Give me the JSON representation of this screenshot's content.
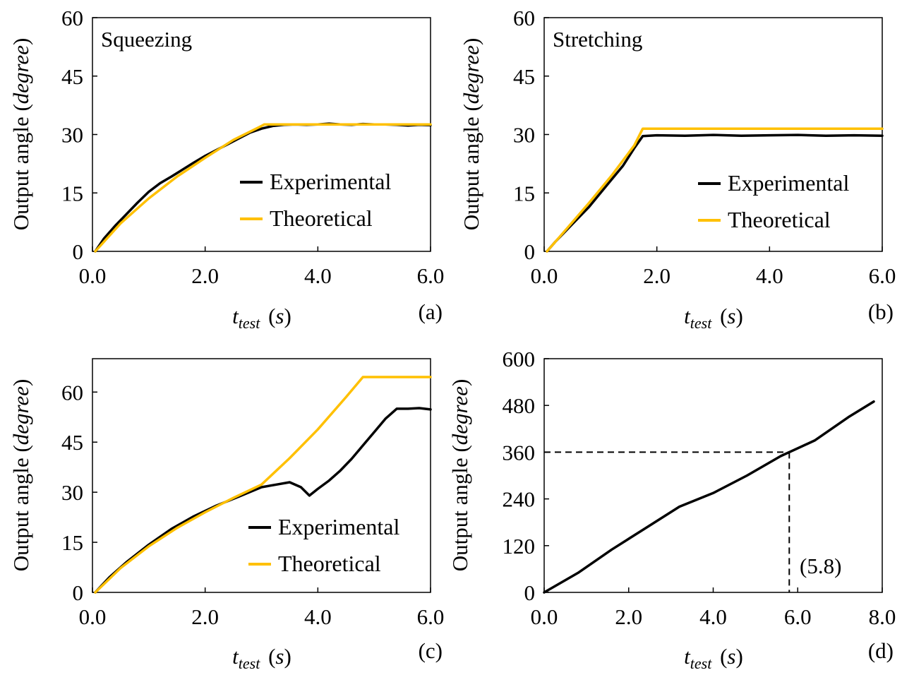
{
  "colors": {
    "experimental": "#000000",
    "theoretical": "#FFC000",
    "frame": "#000000"
  },
  "chart_data": [
    {
      "id": "a",
      "type": "line",
      "panel_label": "(a)",
      "annotation": "Squeezing",
      "xlabel_main": "t",
      "xlabel_sub": "test",
      "xlabel_unit": "(s)",
      "ylabel_main": "Output angle (",
      "ylabel_italic": "degree",
      "ylabel_end": ")",
      "xlim": [
        0,
        6
      ],
      "ylim": [
        0,
        60
      ],
      "xticks": [
        0,
        2,
        4,
        6
      ],
      "xtick_labels": [
        "0.0",
        "2.0",
        "4.0",
        "6.0"
      ],
      "yticks": [
        0,
        15,
        30,
        45,
        60
      ],
      "ytick_labels": [
        "0",
        "15",
        "30",
        "45",
        "60"
      ],
      "legend": [
        "Experimental",
        "Theoretical"
      ],
      "series": [
        {
          "name": "Experimental",
          "color": "#000000",
          "x": [
            0.05,
            0.2,
            0.4,
            0.6,
            0.8,
            1.0,
            1.2,
            1.4,
            1.6,
            1.8,
            2.0,
            2.2,
            2.4,
            2.6,
            2.8,
            3.0,
            3.2,
            3.4,
            3.6,
            3.8,
            4.0,
            4.2,
            4.4,
            4.6,
            4.8,
            5.0,
            5.2,
            5.4,
            5.6,
            5.8,
            6.0
          ],
          "y": [
            0,
            3.2,
            6.5,
            9.5,
            12.5,
            15.3,
            17.5,
            19.2,
            21.0,
            22.8,
            24.5,
            26.0,
            27.5,
            29.0,
            30.5,
            31.5,
            32.2,
            32.5,
            32.6,
            32.5,
            32.6,
            32.8,
            32.6,
            32.5,
            32.7,
            32.6,
            32.6,
            32.5,
            32.3,
            32.5,
            32.4
          ]
        },
        {
          "name": "Theoretical",
          "color": "#FFC000",
          "x": [
            0.05,
            0.5,
            1.0,
            1.5,
            2.0,
            2.5,
            3.0,
            3.05,
            6.0
          ],
          "y": [
            0,
            7.2,
            13.6,
            19.2,
            24.0,
            28.6,
            32.2,
            32.6,
            32.6
          ]
        }
      ]
    },
    {
      "id": "b",
      "type": "line",
      "panel_label": "(b)",
      "annotation": "Stretching",
      "xlabel_main": "t",
      "xlabel_sub": "test",
      "xlabel_unit": "(s)",
      "ylabel_main": "Output angle (",
      "ylabel_italic": "degree",
      "ylabel_end": ")",
      "xlim": [
        0,
        6
      ],
      "ylim": [
        0,
        60
      ],
      "xticks": [
        0,
        2,
        4,
        6
      ],
      "xtick_labels": [
        "0.0",
        "2.0",
        "4.0",
        "6.0"
      ],
      "yticks": [
        0,
        15,
        30,
        45,
        60
      ],
      "ytick_labels": [
        "0",
        "15",
        "30",
        "45",
        "60"
      ],
      "legend": [
        "Experimental",
        "Theoretical"
      ],
      "series": [
        {
          "name": "Experimental",
          "color": "#000000",
          "x": [
            0.05,
            0.2,
            0.4,
            0.6,
            0.8,
            1.0,
            1.2,
            1.4,
            1.6,
            1.75,
            2.0,
            2.5,
            3.0,
            3.5,
            4.0,
            4.5,
            5.0,
            5.5,
            6.0
          ],
          "y": [
            0,
            2.5,
            5.5,
            8.5,
            11.5,
            15.0,
            18.5,
            22.0,
            26.5,
            29.6,
            29.8,
            29.7,
            29.9,
            29.7,
            29.8,
            29.9,
            29.7,
            29.8,
            29.7
          ]
        },
        {
          "name": "Theoretical",
          "color": "#FFC000",
          "x": [
            0.05,
            0.4,
            0.8,
            1.2,
            1.6,
            1.75,
            6.0
          ],
          "y": [
            0,
            5.8,
            12.5,
            19.5,
            27.2,
            31.5,
            31.5
          ]
        }
      ]
    },
    {
      "id": "c",
      "type": "line",
      "panel_label": "(c)",
      "xlabel_main": "t",
      "xlabel_sub": "test",
      "xlabel_unit": "(s)",
      "ylabel_main": "Output angle (",
      "ylabel_italic": "degree",
      "ylabel_end": ")",
      "xlim": [
        0,
        6
      ],
      "ylim": [
        0,
        70
      ],
      "xticks": [
        0,
        2,
        4,
        6
      ],
      "xtick_labels": [
        "0.0",
        "2.0",
        "4.0",
        "6.0"
      ],
      "yticks": [
        0,
        15,
        30,
        45,
        60
      ],
      "ytick_labels": [
        "0",
        "15",
        "30",
        "45",
        "60"
      ],
      "legend": [
        "Experimental",
        "Theoretical"
      ],
      "series": [
        {
          "name": "Experimental",
          "color": "#000000",
          "x": [
            0.05,
            0.3,
            0.6,
            1.0,
            1.4,
            1.8,
            2.2,
            2.6,
            3.0,
            3.3,
            3.5,
            3.7,
            3.85,
            4.0,
            4.2,
            4.4,
            4.6,
            4.8,
            5.0,
            5.2,
            5.4,
            5.6,
            5.8,
            6.0
          ],
          "y": [
            0,
            4.5,
            9.0,
            14.3,
            19.0,
            22.8,
            26.0,
            28.7,
            31.5,
            32.4,
            33.0,
            31.5,
            29.0,
            31.0,
            33.5,
            36.5,
            40.0,
            44.0,
            48.0,
            52.0,
            55.0,
            55.0,
            55.2,
            54.8
          ]
        },
        {
          "name": "Theoretical",
          "color": "#FFC000",
          "x": [
            0.05,
            0.5,
            1.0,
            1.5,
            2.0,
            2.5,
            3.0,
            3.5,
            4.0,
            4.5,
            4.8,
            6.0
          ],
          "y": [
            0,
            7.3,
            13.8,
            19.3,
            24.0,
            28.3,
            32.3,
            40.2,
            48.8,
            58.5,
            64.5,
            64.5
          ]
        }
      ]
    },
    {
      "id": "d",
      "type": "line",
      "panel_label": "(d)",
      "annotation": "(5.8)",
      "xlabel_main": "t",
      "xlabel_sub": "test",
      "xlabel_unit": "(s)",
      "ylabel_main": "Output angle (",
      "ylabel_italic": "degree",
      "ylabel_end": ")",
      "xlim": [
        0,
        8
      ],
      "ylim": [
        0,
        600
      ],
      "xticks": [
        0,
        2,
        4,
        6,
        8
      ],
      "xtick_labels": [
        "0.0",
        "2.0",
        "4.0",
        "6.0",
        "8.0"
      ],
      "yticks": [
        0,
        120,
        240,
        360,
        480,
        600
      ],
      "ytick_labels": [
        "0",
        "120",
        "240",
        "360",
        "480",
        "600"
      ],
      "reference": {
        "x": 5.8,
        "y": 360
      },
      "series": [
        {
          "name": "Experimental",
          "color": "#000000",
          "x": [
            0.0,
            0.8,
            1.6,
            2.4,
            3.2,
            4.0,
            4.8,
            5.6,
            6.4,
            7.2,
            7.8
          ],
          "y": [
            0,
            50,
            110,
            165,
            220,
            255,
            300,
            350,
            390,
            450,
            490
          ]
        }
      ]
    }
  ]
}
